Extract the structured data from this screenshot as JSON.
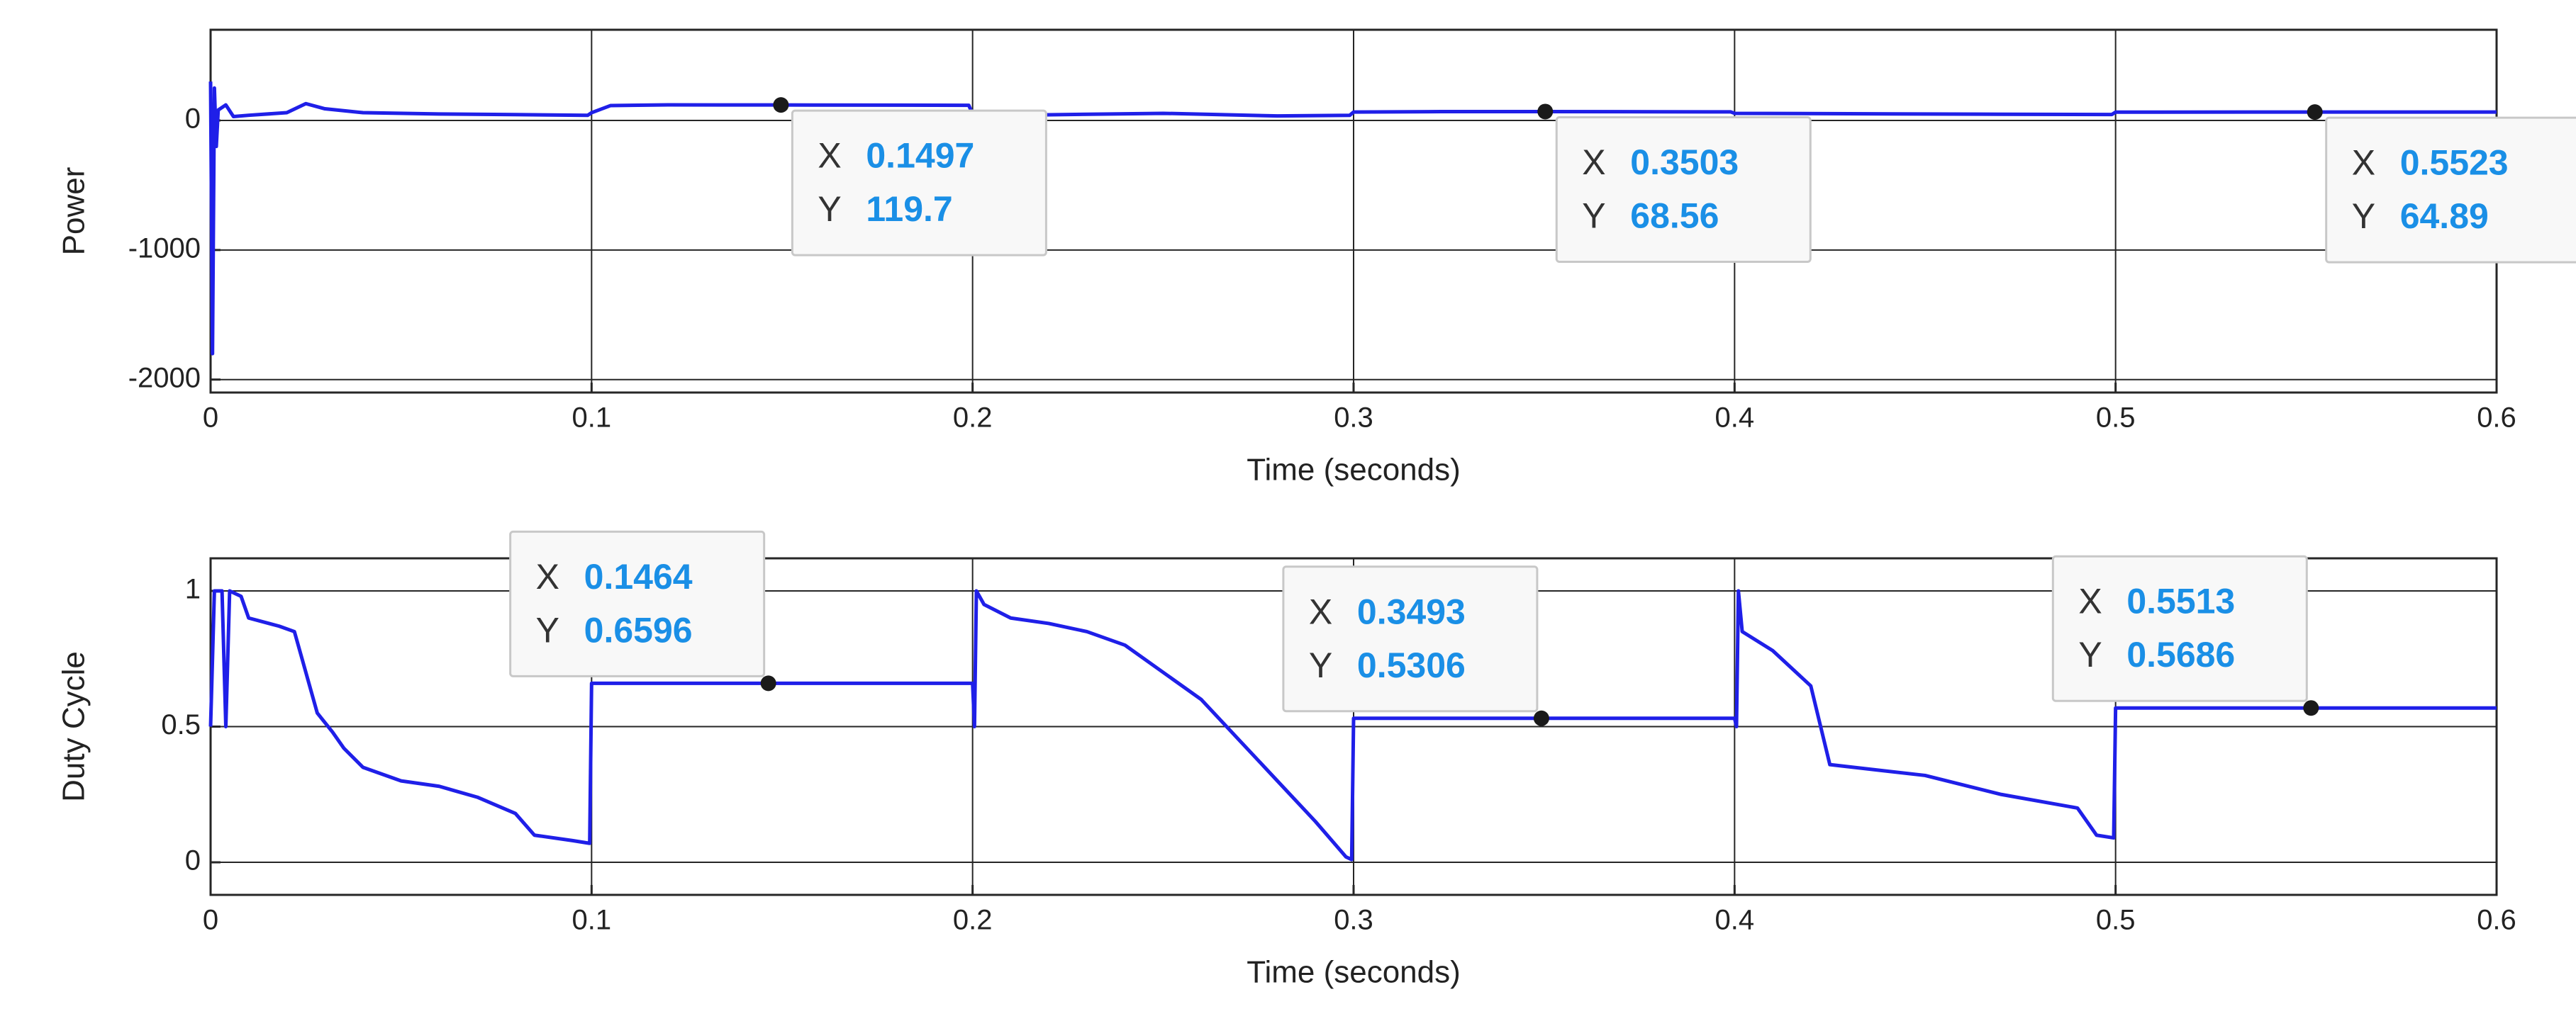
{
  "chart_data": [
    {
      "type": "line",
      "ylabel": "Power",
      "xlabel": "Time (seconds)",
      "x": [
        0,
        0.0005,
        0.001,
        0.0015,
        0.002,
        0.004,
        0.006,
        0.01,
        0.02,
        0.025,
        0.03,
        0.04,
        0.06,
        0.08,
        0.099,
        0.1,
        0.105,
        0.12,
        0.1497,
        0.18,
        0.199,
        0.2,
        0.21,
        0.25,
        0.28,
        0.299,
        0.3,
        0.32,
        0.3503,
        0.38,
        0.399,
        0.4,
        0.43,
        0.47,
        0.499,
        0.5,
        0.5523,
        0.6
      ],
      "series": [
        {
          "color": "#1f1fe8",
          "values": [
            300,
            -1800,
            250,
            -200,
            80,
            120,
            30,
            40,
            60,
            130,
            90,
            60,
            50,
            45,
            40,
            60,
            115,
            120,
            119.7,
            118,
            117,
            50,
            40,
            55,
            35,
            40,
            65,
            68,
            68.56,
            67,
            66,
            55,
            52,
            48,
            46,
            64,
            64.89,
            65
          ]
        }
      ],
      "xlim": [
        0,
        0.6
      ],
      "xticks": [
        0,
        0.1,
        0.2,
        0.3,
        0.4,
        0.5,
        0.6
      ],
      "ylim": [
        -2100,
        700
      ],
      "yticks": [
        -2000,
        -1000,
        0
      ],
      "grid": true,
      "datatip_labels": [
        "X",
        "Y"
      ],
      "datatips": [
        {
          "x": 0.1497,
          "y": 119.7
        },
        {
          "x": 0.3503,
          "y": 68.56
        },
        {
          "x": 0.5523,
          "y": 64.89
        }
      ]
    },
    {
      "type": "line",
      "ylabel": "Duty Cycle",
      "xlabel": "Time (seconds)",
      "x": [
        0,
        0.001,
        0.003,
        0.004,
        0.005,
        0.008,
        0.01,
        0.018,
        0.022,
        0.024,
        0.026,
        0.028,
        0.032,
        0.035,
        0.04,
        0.05,
        0.06,
        0.07,
        0.08,
        0.085,
        0.095,
        0.0995,
        0.1,
        0.1464,
        0.2,
        0.2005,
        0.201,
        0.203,
        0.21,
        0.22,
        0.23,
        0.24,
        0.25,
        0.26,
        0.27,
        0.28,
        0.29,
        0.298,
        0.2995,
        0.3,
        0.3493,
        0.4,
        0.4005,
        0.401,
        0.402,
        0.41,
        0.42,
        0.425,
        0.45,
        0.47,
        0.49,
        0.495,
        0.4995,
        0.5,
        0.5513,
        0.6
      ],
      "series": [
        {
          "color": "#1f1fe8",
          "values": [
            0.5,
            1,
            1,
            0.5,
            1,
            0.98,
            0.9,
            0.87,
            0.85,
            0.75,
            0.65,
            0.55,
            0.48,
            0.42,
            0.35,
            0.3,
            0.28,
            0.24,
            0.18,
            0.1,
            0.08,
            0.07,
            0.6596,
            0.6596,
            0.6596,
            0.5,
            1,
            0.95,
            0.9,
            0.88,
            0.85,
            0.8,
            0.7,
            0.6,
            0.45,
            0.3,
            0.15,
            0.02,
            0.01,
            0.5306,
            0.5306,
            0.5306,
            0.5,
            1,
            0.85,
            0.78,
            0.65,
            0.36,
            0.32,
            0.25,
            0.2,
            0.1,
            0.09,
            0.5686,
            0.5686,
            0.5686
          ]
        }
      ],
      "xlim": [
        0,
        0.6
      ],
      "xticks": [
        0,
        0.1,
        0.2,
        0.3,
        0.4,
        0.5,
        0.6
      ],
      "ylim": [
        -0.12,
        1.12
      ],
      "yticks": [
        0,
        0.5,
        1
      ],
      "grid": true,
      "datatip_labels": [
        "X",
        "Y"
      ],
      "datatips": [
        {
          "x": 0.1464,
          "y": 0.6596
        },
        {
          "x": 0.3493,
          "y": 0.5306
        },
        {
          "x": 0.5513,
          "y": 0.5686
        }
      ]
    }
  ]
}
